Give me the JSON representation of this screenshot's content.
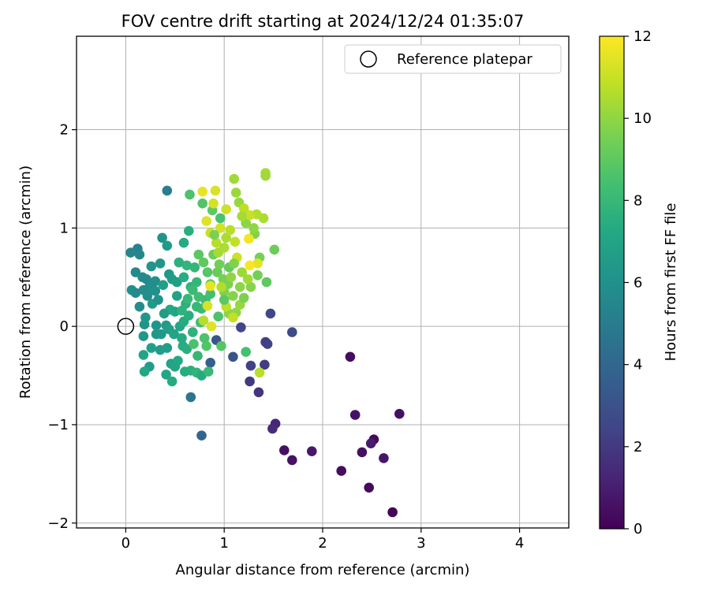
{
  "chart_data": {
    "type": "scatter",
    "title": "FOV centre drift starting at 2024/12/24 01:35:07",
    "xlabel": "Angular distance from reference (arcmin)",
    "ylabel": "Rotation from reference (arcmin)",
    "xlim": [
      -0.5,
      4.5
    ],
    "ylim": [
      -2.05,
      2.95
    ],
    "xticks": [
      0,
      1,
      2,
      3,
      4
    ],
    "xtick_labels": [
      "0",
      "1",
      "2",
      "3",
      "4"
    ],
    "yticks": [
      -2,
      -1,
      0,
      1,
      2
    ],
    "ytick_labels": [
      "−2",
      "−1",
      "0",
      "1",
      "2"
    ],
    "grid": true,
    "legend": {
      "position": "top-right",
      "entries": [
        "Reference platepar"
      ]
    },
    "reference_point": {
      "x": 0,
      "y": 0,
      "label": "Reference platepar"
    },
    "colorbar": {
      "label": "Hours from first FF file",
      "range": [
        0,
        12
      ],
      "ticks": [
        0,
        2,
        4,
        6,
        8,
        10,
        12
      ],
      "tick_labels": [
        "0",
        "2",
        "4",
        "6",
        "8",
        "10",
        "12"
      ],
      "colormap": "viridis"
    },
    "points": [
      [
        2.71,
        -1.89,
        0.1
      ],
      [
        2.47,
        -1.64,
        0.3
      ],
      [
        2.19,
        -1.47,
        0.4
      ],
      [
        1.69,
        -1.36,
        0.6
      ],
      [
        1.61,
        -1.26,
        0.5
      ],
      [
        1.89,
        -1.27,
        0.8
      ],
      [
        2.4,
        -1.28,
        0.5
      ],
      [
        2.62,
        -1.34,
        0.7
      ],
      [
        2.52,
        -1.15,
        0.3
      ],
      [
        2.49,
        -1.19,
        0.9
      ],
      [
        2.33,
        -0.9,
        0.6
      ],
      [
        2.78,
        -0.89,
        0.5
      ],
      [
        2.28,
        -0.31,
        0.4
      ],
      [
        1.52,
        -0.99,
        1.3
      ],
      [
        1.49,
        -1.04,
        1.5
      ],
      [
        1.35,
        -0.67,
        1.8
      ],
      [
        1.26,
        -0.56,
        2.0
      ],
      [
        1.41,
        -0.39,
        2.1
      ],
      [
        1.27,
        -0.4,
        2.3
      ],
      [
        1.44,
        -0.18,
        2.4
      ],
      [
        1.42,
        -0.16,
        2.2
      ],
      [
        1.47,
        0.13,
        2.6
      ],
      [
        1.69,
        -0.06,
        2.7
      ],
      [
        1.17,
        -0.01,
        2.5
      ],
      [
        1.09,
        -0.31,
        3.0
      ],
      [
        0.92,
        -0.14,
        3.2
      ],
      [
        0.86,
        -0.37,
        3.6
      ],
      [
        0.77,
        -1.11,
        3.9
      ],
      [
        0.66,
        -0.72,
        4.7
      ],
      [
        0.42,
        1.38,
        5.1
      ],
      [
        0.12,
        0.79,
        5.3
      ],
      [
        0.14,
        0.73,
        5.5
      ],
      [
        0.05,
        0.75,
        5.4
      ],
      [
        0.1,
        0.55,
        5.6
      ],
      [
        0.17,
        0.5,
        5.8
      ],
      [
        0.21,
        0.48,
        5.6
      ],
      [
        0.24,
        0.4,
        5.9
      ],
      [
        0.06,
        0.37,
        6.0
      ],
      [
        0.1,
        0.34,
        5.7
      ],
      [
        0.18,
        0.37,
        5.8
      ],
      [
        0.3,
        0.36,
        6.0
      ],
      [
        0.37,
        0.9,
        6.1
      ],
      [
        0.26,
        0.61,
        6.2
      ],
      [
        0.35,
        0.64,
        6.3
      ],
      [
        0.42,
        0.82,
        6.5
      ],
      [
        0.3,
        0.46,
        5.9
      ],
      [
        0.44,
        0.53,
        6.4
      ],
      [
        0.47,
        0.48,
        6.6
      ],
      [
        0.52,
        0.45,
        6.7
      ],
      [
        0.19,
        0.02,
        6.1
      ],
      [
        0.18,
        -0.1,
        6.3
      ],
      [
        0.31,
        0.01,
        6.2
      ],
      [
        0.36,
        -0.08,
        6.4
      ],
      [
        0.41,
        0.01,
        6.5
      ],
      [
        0.44,
        -0.03,
        6.8
      ],
      [
        0.35,
        -0.24,
        6.6
      ],
      [
        0.42,
        -0.22,
        6.7
      ],
      [
        0.46,
        -0.38,
        6.9
      ],
      [
        0.24,
        -0.41,
        6.6
      ],
      [
        0.18,
        -0.29,
        7.0
      ],
      [
        0.19,
        -0.46,
        7.2
      ],
      [
        0.41,
        -0.49,
        7.1
      ],
      [
        0.47,
        -0.56,
        7.3
      ],
      [
        0.5,
        -0.41,
        7.0
      ],
      [
        0.53,
        -0.35,
        7.2
      ],
      [
        0.58,
        -0.2,
        7.4
      ],
      [
        0.62,
        -0.23,
        7.5
      ],
      [
        0.66,
        -0.45,
        7.6
      ],
      [
        0.6,
        -0.46,
        7.4
      ],
      [
        0.72,
        -0.47,
        7.8
      ],
      [
        0.77,
        -0.5,
        7.3
      ],
      [
        0.84,
        -0.46,
        8.0
      ],
      [
        0.55,
        0.0,
        7.1
      ],
      [
        0.59,
        0.05,
        7.3
      ],
      [
        0.64,
        0.11,
        7.5
      ],
      [
        0.5,
        0.15,
        7.0
      ],
      [
        0.45,
        0.17,
        7.2
      ],
      [
        0.61,
        0.23,
        7.6
      ],
      [
        0.66,
        0.4,
        7.7
      ],
      [
        0.72,
        0.45,
        7.9
      ],
      [
        0.59,
        0.5,
        7.4
      ],
      [
        0.62,
        0.62,
        7.8
      ],
      [
        0.54,
        0.65,
        7.6
      ],
      [
        0.59,
        0.85,
        7.3
      ],
      [
        0.64,
        0.97,
        7.5
      ],
      [
        0.77,
        0.18,
        8.1
      ],
      [
        0.81,
        0.27,
        8.2
      ],
      [
        0.86,
        0.33,
        8.4
      ],
      [
        0.72,
        0.2,
        8.0
      ],
      [
        0.76,
        0.04,
        8.3
      ],
      [
        0.69,
        -0.18,
        8.5
      ],
      [
        0.8,
        -0.12,
        8.6
      ],
      [
        0.82,
        -0.2,
        8.7
      ],
      [
        0.97,
        -0.2,
        8.8
      ],
      [
        1.22,
        -0.26,
        8.4
      ],
      [
        0.65,
        1.34,
        8.6
      ],
      [
        0.78,
        1.25,
        8.7
      ],
      [
        0.96,
        1.1,
        8.5
      ],
      [
        0.88,
        1.18,
        9.0
      ],
      [
        0.86,
        0.43,
        9.1
      ],
      [
        0.93,
        0.55,
        9.2
      ],
      [
        0.89,
        0.73,
        9.3
      ],
      [
        0.95,
        0.63,
        9.4
      ],
      [
        0.99,
        0.48,
        9.5
      ],
      [
        1.04,
        0.43,
        9.6
      ],
      [
        1.0,
        0.35,
        9.7
      ],
      [
        1.09,
        0.31,
        9.8
      ],
      [
        1.05,
        0.13,
        9.9
      ],
      [
        1.12,
        0.14,
        10.0
      ],
      [
        1.16,
        0.22,
        10.1
      ],
      [
        1.2,
        0.29,
        9.6
      ],
      [
        1.27,
        0.4,
        9.8
      ],
      [
        1.34,
        0.52,
        9.4
      ],
      [
        1.43,
        0.45,
        9.0
      ],
      [
        1.36,
        0.7,
        9.5
      ],
      [
        1.51,
        0.78,
        9.3
      ],
      [
        1.31,
        0.94,
        9.7
      ],
      [
        1.22,
        1.05,
        9.9
      ],
      [
        1.15,
        1.26,
        10.1
      ],
      [
        1.1,
        1.5,
        10.3
      ],
      [
        1.12,
        1.36,
        10.2
      ],
      [
        1.42,
        1.56,
        10.4
      ],
      [
        1.42,
        1.53,
        10.3
      ],
      [
        1.4,
        1.1,
        10.5
      ],
      [
        1.33,
        1.14,
        10.6
      ],
      [
        1.26,
        1.13,
        11.0
      ],
      [
        1.2,
        1.2,
        10.8
      ],
      [
        1.02,
        1.19,
        11.1
      ],
      [
        0.89,
        1.25,
        11.2
      ],
      [
        0.91,
        1.38,
        11.3
      ],
      [
        0.78,
        1.37,
        11.6
      ],
      [
        0.82,
        1.07,
        11.4
      ],
      [
        0.86,
        0.95,
        11.0
      ],
      [
        0.92,
        0.85,
        10.7
      ],
      [
        0.96,
        1.0,
        11.2
      ],
      [
        1.11,
        0.86,
        10.9
      ],
      [
        1.25,
        0.89,
        11.8
      ],
      [
        1.34,
        0.64,
        11.5
      ],
      [
        1.26,
        0.62,
        11.9
      ],
      [
        1.13,
        0.7,
        11.1
      ],
      [
        1.02,
        0.9,
        10.5
      ],
      [
        0.94,
        0.75,
        10.4
      ],
      [
        0.97,
        0.4,
        10.6
      ],
      [
        1.02,
        0.2,
        10.8
      ],
      [
        0.86,
        0.41,
        11.6
      ],
      [
        0.83,
        0.21,
        11.3
      ],
      [
        0.79,
        0.06,
        10.7
      ],
      [
        0.87,
        0.0,
        11.4
      ],
      [
        1.09,
        0.09,
        10.9
      ],
      [
        1.36,
        -0.47,
        10.7
      ],
      [
        0.7,
        0.6,
        7.9
      ],
      [
        0.74,
        0.73,
        8.9
      ],
      [
        0.83,
        0.55,
        8.8
      ],
      [
        0.79,
        0.65,
        9.0
      ],
      [
        0.9,
        0.93,
        9.6
      ],
      [
        1.0,
        0.27,
        8.9
      ],
      [
        0.94,
        0.1,
        8.6
      ],
      [
        0.74,
        0.3,
        8.3
      ],
      [
        0.68,
        0.37,
        8.1
      ],
      [
        0.63,
        0.28,
        8.0
      ],
      [
        0.57,
        0.16,
        7.7
      ],
      [
        0.52,
        0.31,
        6.9
      ],
      [
        0.38,
        0.42,
        6.8
      ],
      [
        0.27,
        0.23,
        6.5
      ],
      [
        0.2,
        0.09,
        6.3
      ],
      [
        0.39,
        0.13,
        6.6
      ],
      [
        0.49,
        -0.08,
        7.0
      ],
      [
        0.57,
        -0.12,
        7.3
      ],
      [
        0.68,
        -0.06,
        7.7
      ],
      [
        0.73,
        -0.3,
        7.9
      ],
      [
        0.31,
        -0.08,
        6.4
      ],
      [
        0.26,
        -0.22,
        6.8
      ],
      [
        0.14,
        0.2,
        5.8
      ],
      [
        0.22,
        0.31,
        5.9
      ],
      [
        0.33,
        0.27,
        6.1
      ],
      [
        1.05,
        0.6,
        9.1
      ],
      [
        1.1,
        0.64,
        9.7
      ],
      [
        1.18,
        0.55,
        10.2
      ],
      [
        1.24,
        0.48,
        10.3
      ],
      [
        1.16,
        0.4,
        9.9
      ],
      [
        1.07,
        0.5,
        10.0
      ],
      [
        1.0,
        0.8,
        10.5
      ],
      [
        1.06,
        0.98,
        10.7
      ],
      [
        1.18,
        1.12,
        10.4
      ],
      [
        1.3,
        1.0,
        10.0
      ]
    ]
  }
}
